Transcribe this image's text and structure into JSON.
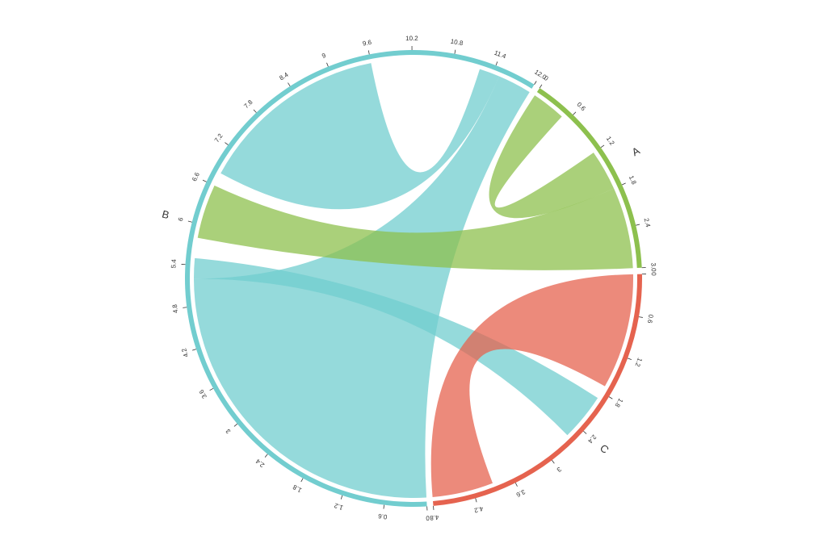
{
  "chart_data": {
    "type": "chord",
    "sectors": [
      {
        "name": "A",
        "color": "#8dc04e",
        "length": 3,
        "ticks": [
          0,
          0.6,
          1.2,
          1.8,
          2.4,
          {
            "value": 3,
            "label": "3.0"
          }
        ]
      },
      {
        "name": "C",
        "color": "#e5634f",
        "length": 4.8,
        "ticks": [
          0,
          0.6,
          1.2,
          1.8,
          2.4,
          3,
          3.6,
          4.2,
          4.8
        ]
      },
      {
        "name": "B",
        "color": "#72cdcf",
        "length": 12,
        "ticks": [
          0,
          0.6,
          1.2,
          1.8,
          2.4,
          3,
          3.6,
          4.2,
          4.8,
          5.4,
          6,
          6.6,
          7.2,
          7.8,
          8.4,
          9,
          9.6,
          10.2,
          10.8,
          11.4,
          {
            "value": 12,
            "label": "12.0"
          }
        ]
      }
    ],
    "links": [
      {
        "source": "B",
        "source_range": [
          0,
          5.2
        ],
        "target": "B",
        "target_range": [
          11.5,
          12
        ]
      },
      {
        "source": "B",
        "source_range": [
          6.8,
          9.6
        ],
        "target": "B",
        "target_range": [
          11.2,
          11.5
        ]
      },
      {
        "source": "B",
        "source_range": [
          5.2,
          5.5
        ],
        "target": "C",
        "target_range": [
          1.9,
          2.6
        ]
      },
      {
        "source": "A",
        "source_range": [
          1.8,
          3
        ],
        "target": "B",
        "target_range": [
          5.8,
          6.6
        ]
      },
      {
        "source": "A",
        "source_range": [
          0,
          0.5
        ],
        "target": "A",
        "target_range": [
          1.2,
          1.8
        ]
      },
      {
        "source": "C",
        "source_range": [
          0,
          1.7
        ],
        "target": "C",
        "target_range": [
          3.9,
          4.8
        ]
      }
    ]
  }
}
